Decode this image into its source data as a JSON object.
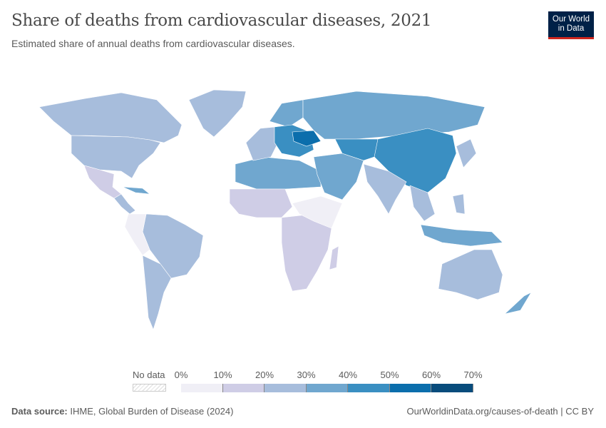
{
  "header": {
    "title": "Share of deaths from cardiovascular diseases, 2021",
    "subtitle": "Estimated share of annual deaths from cardiovascular diseases.",
    "logo_line1": "Our World",
    "logo_line2": "in Data"
  },
  "legend": {
    "no_data_label": "No data",
    "ticks": [
      "0%",
      "10%",
      "20%",
      "30%",
      "40%",
      "50%",
      "60%",
      "70%"
    ],
    "bins": [
      {
        "range": "0-10%",
        "color": "#f0eff6"
      },
      {
        "range": "10-20%",
        "color": "#cfcde6"
      },
      {
        "range": "20-30%",
        "color": "#a7bddc"
      },
      {
        "range": "30-40%",
        "color": "#70a7cf"
      },
      {
        "range": "40-50%",
        "color": "#3a8fc2"
      },
      {
        "range": "50-60%",
        "color": "#0b6eac"
      },
      {
        "range": "60-70%",
        "color": "#084c7c"
      }
    ]
  },
  "footer": {
    "source_label": "Data source:",
    "source_text": " IHME, Global Burden of Disease (2024)",
    "url_text": "OurWorldinData.org/causes-of-death | CC BY"
  },
  "colors": {
    "logo_bg": "#002147",
    "logo_accent": "#ce261e"
  }
}
